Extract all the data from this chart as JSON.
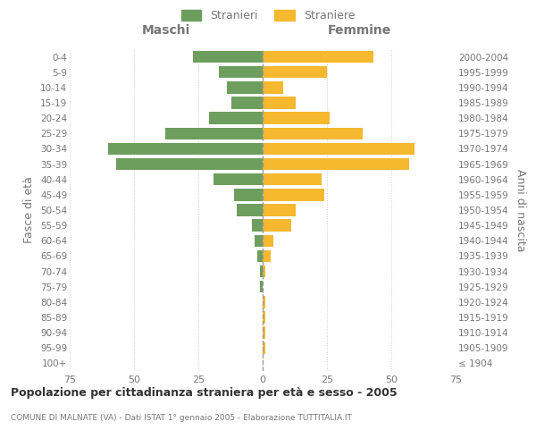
{
  "age_groups": [
    "100+",
    "95-99",
    "90-94",
    "85-89",
    "80-84",
    "75-79",
    "70-74",
    "65-69",
    "60-64",
    "55-59",
    "50-54",
    "45-49",
    "40-44",
    "35-39",
    "30-34",
    "25-29",
    "20-24",
    "15-19",
    "10-14",
    "5-9",
    "0-4"
  ],
  "birth_years": [
    "≤ 1904",
    "1905-1909",
    "1910-1914",
    "1915-1919",
    "1920-1924",
    "1925-1929",
    "1930-1934",
    "1935-1939",
    "1940-1944",
    "1945-1949",
    "1950-1954",
    "1955-1959",
    "1960-1964",
    "1965-1969",
    "1970-1974",
    "1975-1979",
    "1980-1984",
    "1985-1989",
    "1990-1994",
    "1995-1999",
    "2000-2004"
  ],
  "maschi": [
    0,
    0,
    0,
    0,
    0,
    1,
    1,
    2,
    3,
    4,
    10,
    11,
    19,
    57,
    60,
    38,
    21,
    12,
    14,
    17,
    27
  ],
  "femmine": [
    0,
    1,
    1,
    1,
    1,
    0,
    1,
    3,
    4,
    11,
    13,
    24,
    23,
    57,
    59,
    39,
    26,
    13,
    8,
    25,
    43
  ],
  "color_maschi": "#6d9e5e",
  "color_femmine": "#f5b82e",
  "xlim": 75,
  "title": "Popolazione per cittadinanza straniera per età e sesso - 2005",
  "subtitle": "COMUNE DI MALNATE (VA) - Dati ISTAT 1° gennaio 2005 - Elaborazione TUTTITALIA.IT",
  "ylabel_left": "Fasce di età",
  "ylabel_right": "Anni di nascita",
  "label_maschi": "Maschi",
  "label_femmine": "Femmine",
  "legend_stranieri": "Stranieri",
  "legend_straniere": "Straniere",
  "bg_color": "#ffffff",
  "grid_color": "#cccccc",
  "text_color": "#777777",
  "title_color": "#333333"
}
